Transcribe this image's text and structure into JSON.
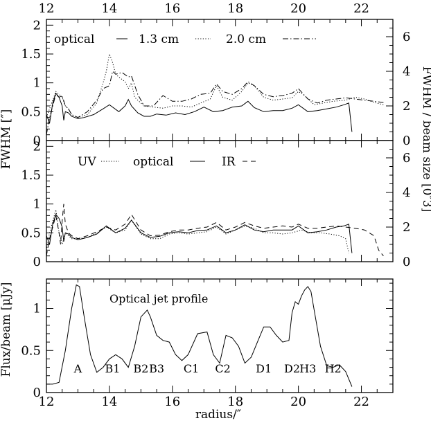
{
  "chart_data": {
    "type": "line",
    "shared_x": {
      "label": "radius/″",
      "range": [
        12,
        23
      ],
      "tick_labels": [
        "12",
        "14",
        "16",
        "18",
        "20",
        "22"
      ]
    },
    "axis_titles": {
      "left_fwhm": "FWHM [″]",
      "right_fwhm": "FWHM / beam size [0″3]",
      "flux": "Flux/beam [μJy]"
    },
    "panels": [
      {
        "id": "top",
        "ylim": [
          0,
          2.1
        ],
        "y_tick_labels": [
          "0",
          "0.5",
          "1",
          "1.5",
          "2"
        ],
        "right_ylim": [
          0,
          7
        ],
        "right_tick_labels": [
          "0",
          "2",
          "4",
          "6"
        ],
        "legend": [
          {
            "label": "optical",
            "style": "solid"
          },
          {
            "label": "1.3 cm",
            "style": "dotted"
          },
          {
            "label": "2.0 cm",
            "style": "dashdot"
          }
        ],
        "series": [
          {
            "name": "optical",
            "style": "solid",
            "x": [
              12.0,
              12.1,
              12.2,
              12.3,
              12.4,
              12.5,
              12.55,
              12.6,
              12.7,
              12.8,
              13.0,
              13.2,
              13.5,
              13.8,
              14.0,
              14.3,
              14.5,
              14.6,
              14.7,
              14.9,
              15.1,
              15.3,
              15.5,
              15.8,
              16.1,
              16.4,
              16.7,
              17.0,
              17.3,
              17.6,
              17.9,
              18.2,
              18.4,
              18.6,
              18.9,
              19.2,
              19.5,
              19.8,
              20.0,
              20.3,
              20.6,
              20.9,
              21.2,
              21.45,
              21.6,
              21.7
            ],
            "y": [
              0.45,
              0.3,
              0.65,
              0.82,
              0.75,
              0.6,
              0.35,
              0.5,
              0.48,
              0.42,
              0.38,
              0.4,
              0.45,
              0.55,
              0.62,
              0.5,
              0.6,
              0.71,
              0.6,
              0.48,
              0.42,
              0.42,
              0.46,
              0.44,
              0.48,
              0.45,
              0.5,
              0.58,
              0.5,
              0.52,
              0.58,
              0.6,
              0.68,
              0.57,
              0.5,
              0.52,
              0.52,
              0.56,
              0.62,
              0.5,
              0.52,
              0.55,
              0.58,
              0.62,
              0.65,
              0.15
            ]
          },
          {
            "name": "1.3 cm",
            "style": "dotted",
            "x": [
              12.0,
              12.1,
              12.2,
              12.3,
              12.4,
              12.5,
              12.6,
              12.7,
              12.8,
              13.0,
              13.3,
              13.6,
              13.8,
              13.9,
              14.0,
              14.1,
              14.2,
              14.3,
              14.5,
              14.6,
              14.7,
              14.8,
              15.1,
              15.4,
              15.7,
              16.0,
              16.3,
              16.6,
              16.9,
              17.2,
              17.4,
              17.6,
              17.9,
              18.2,
              18.4,
              18.6,
              18.9,
              19.2,
              19.5,
              19.8,
              20.0,
              20.2,
              20.5,
              20.8,
              21.1,
              21.5,
              21.8,
              22.1,
              22.4,
              22.7
            ],
            "y": [
              0.4,
              0.55,
              0.7,
              0.85,
              0.8,
              0.75,
              0.6,
              0.55,
              0.45,
              0.4,
              0.45,
              0.65,
              1.0,
              1.2,
              1.5,
              1.35,
              1.15,
              1.1,
              1.02,
              0.9,
              1.0,
              0.75,
              0.6,
              0.58,
              0.56,
              0.6,
              0.6,
              0.58,
              0.65,
              0.72,
              0.95,
              0.75,
              0.7,
              0.85,
              1.0,
              0.95,
              0.75,
              0.7,
              0.72,
              0.74,
              0.85,
              0.78,
              0.62,
              0.65,
              0.68,
              0.7,
              0.75,
              0.72,
              0.66,
              0.62
            ]
          },
          {
            "name": "2.0 cm",
            "style": "dashdot",
            "x": [
              12.0,
              12.1,
              12.2,
              12.3,
              12.4,
              12.5,
              12.6,
              12.7,
              12.8,
              13.0,
              13.3,
              13.6,
              13.8,
              14.0,
              14.1,
              14.2,
              14.4,
              14.6,
              14.7,
              14.9,
              15.1,
              15.4,
              15.7,
              16.0,
              16.3,
              16.6,
              16.9,
              17.2,
              17.4,
              17.6,
              17.9,
              18.2,
              18.4,
              18.6,
              18.9,
              19.2,
              19.5,
              19.8,
              20.0,
              20.3,
              20.6,
              20.9,
              21.2,
              21.5,
              21.8,
              22.1,
              22.4,
              22.7
            ],
            "y": [
              0.1,
              0.4,
              0.6,
              0.8,
              0.75,
              0.78,
              0.6,
              0.55,
              0.45,
              0.4,
              0.5,
              0.7,
              0.9,
              0.95,
              1.2,
              1.15,
              1.18,
              1.1,
              1.12,
              0.8,
              0.6,
              0.6,
              0.78,
              0.68,
              0.68,
              0.72,
              0.8,
              0.82,
              0.98,
              0.85,
              0.8,
              0.9,
              1.02,
              0.95,
              0.8,
              0.76,
              0.78,
              0.82,
              0.9,
              0.72,
              0.65,
              0.7,
              0.72,
              0.74,
              0.72,
              0.7,
              0.68,
              0.66
            ]
          }
        ]
      },
      {
        "id": "middle",
        "ylim": [
          0,
          2.1
        ],
        "y_tick_labels": [
          "0",
          "0.5",
          "1",
          "1.5",
          "2"
        ],
        "right_ylim": [
          0,
          7
        ],
        "right_tick_labels": [
          "0",
          "2",
          "4",
          "6"
        ],
        "legend": [
          {
            "label": "UV",
            "style": "dotted"
          },
          {
            "label": "optical",
            "style": "solid"
          },
          {
            "label": "IR",
            "style": "dashed"
          }
        ],
        "series": [
          {
            "name": "UV",
            "style": "dotted",
            "x": [
              12.0,
              12.1,
              12.2,
              12.3,
              12.4,
              12.5,
              12.6,
              12.7,
              12.8,
              13.0,
              13.3,
              13.6,
              13.9,
              14.2,
              14.5,
              14.7,
              15.0,
              15.3,
              15.6,
              15.9,
              16.2,
              16.5,
              16.8,
              17.1,
              17.4,
              17.7,
              18.0,
              18.3,
              18.6,
              18.9,
              19.2,
              19.5,
              19.8,
              20.1,
              20.4,
              20.7,
              21.0,
              21.3,
              21.5,
              21.6
            ],
            "y": [
              0.2,
              0.5,
              0.7,
              0.9,
              0.5,
              0.3,
              0.5,
              0.45,
              0.4,
              0.4,
              0.42,
              0.5,
              0.6,
              0.5,
              0.55,
              0.72,
              0.48,
              0.4,
              0.4,
              0.48,
              0.5,
              0.48,
              0.5,
              0.52,
              0.6,
              0.48,
              0.55,
              0.62,
              0.58,
              0.5,
              0.5,
              0.48,
              0.5,
              0.55,
              0.5,
              0.5,
              0.48,
              0.45,
              0.4,
              0.15
            ]
          },
          {
            "name": "optical",
            "style": "solid",
            "x": [
              12.0,
              12.1,
              12.2,
              12.3,
              12.4,
              12.5,
              12.55,
              12.6,
              12.7,
              12.8,
              13.0,
              13.3,
              13.6,
              13.9,
              14.2,
              14.5,
              14.7,
              15.0,
              15.3,
              15.6,
              15.9,
              16.2,
              16.5,
              16.8,
              17.1,
              17.4,
              17.7,
              18.0,
              18.3,
              18.6,
              18.9,
              19.2,
              19.5,
              19.8,
              20.0,
              20.3,
              20.6,
              20.9,
              21.2,
              21.45,
              21.6,
              21.7
            ],
            "y": [
              0.45,
              0.3,
              0.65,
              0.82,
              0.75,
              0.6,
              0.35,
              0.5,
              0.48,
              0.42,
              0.38,
              0.42,
              0.48,
              0.62,
              0.5,
              0.58,
              0.72,
              0.5,
              0.42,
              0.44,
              0.5,
              0.52,
              0.5,
              0.54,
              0.55,
              0.62,
              0.5,
              0.55,
              0.64,
              0.55,
              0.52,
              0.55,
              0.55,
              0.55,
              0.62,
              0.5,
              0.52,
              0.55,
              0.6,
              0.62,
              0.65,
              0.15
            ]
          },
          {
            "name": "IR",
            "style": "dashed",
            "x": [
              12.0,
              12.1,
              12.2,
              12.3,
              12.4,
              12.45,
              12.5,
              12.55,
              12.6,
              12.7,
              12.8,
              13.0,
              13.3,
              13.6,
              13.9,
              14.2,
              14.5,
              14.7,
              15.0,
              15.3,
              15.6,
              15.9,
              16.2,
              16.5,
              16.8,
              17.1,
              17.4,
              17.7,
              18.0,
              18.3,
              18.6,
              18.9,
              19.2,
              19.5,
              19.8,
              20.0,
              20.3,
              20.6,
              20.9,
              21.2,
              21.5,
              21.8,
              22.1,
              22.4,
              22.55,
              22.7
            ],
            "y": [
              0.1,
              0.4,
              0.6,
              0.8,
              0.5,
              0.3,
              0.7,
              1.0,
              0.65,
              0.5,
              0.45,
              0.4,
              0.45,
              0.52,
              0.6,
              0.55,
              0.65,
              0.82,
              0.55,
              0.45,
              0.46,
              0.52,
              0.55,
              0.55,
              0.58,
              0.6,
              0.68,
              0.55,
              0.6,
              0.68,
              0.62,
              0.58,
              0.6,
              0.62,
              0.6,
              0.65,
              0.58,
              0.58,
              0.6,
              0.62,
              0.6,
              0.58,
              0.55,
              0.45,
              0.2,
              0.1
            ]
          }
        ]
      },
      {
        "id": "bottom",
        "ylim": [
          0,
          1.35
        ],
        "y_tick_labels": [
          "0",
          "0.5",
          "1"
        ],
        "annotation": "Optical jet profile",
        "knots": [
          {
            "label": "A",
            "x": 13.0
          },
          {
            "label": "B1",
            "x": 14.1
          },
          {
            "label": "B2",
            "x": 15.0
          },
          {
            "label": "B3",
            "x": 15.5
          },
          {
            "label": "C1",
            "x": 16.6
          },
          {
            "label": "C2",
            "x": 17.6
          },
          {
            "label": "D1",
            "x": 18.9
          },
          {
            "label": "D2",
            "x": 19.8
          },
          {
            "label": "H3",
            "x": 20.3
          },
          {
            "label": "H2",
            "x": 21.1
          }
        ],
        "series": [
          {
            "name": "optical",
            "style": "solid",
            "x": [
              12.0,
              12.2,
              12.4,
              12.6,
              12.8,
              12.95,
              13.05,
              13.2,
              13.4,
              13.6,
              13.8,
              14.0,
              14.2,
              14.4,
              14.6,
              14.8,
              15.0,
              15.2,
              15.3,
              15.5,
              15.7,
              15.9,
              16.1,
              16.3,
              16.5,
              16.8,
              17.1,
              17.3,
              17.5,
              17.7,
              17.9,
              18.1,
              18.3,
              18.5,
              18.7,
              18.9,
              19.1,
              19.3,
              19.5,
              19.7,
              19.8,
              19.9,
              20.0,
              20.1,
              20.2,
              20.3,
              20.4,
              20.5,
              20.7,
              20.9,
              21.1,
              21.3,
              21.5,
              21.7
            ],
            "y": [
              0.1,
              0.1,
              0.12,
              0.5,
              1.0,
              1.28,
              1.26,
              0.9,
              0.45,
              0.24,
              0.3,
              0.4,
              0.45,
              0.4,
              0.3,
              0.55,
              0.9,
              0.98,
              0.9,
              0.68,
              0.62,
              0.6,
              0.45,
              0.38,
              0.45,
              0.7,
              0.72,
              0.45,
              0.35,
              0.68,
              0.65,
              0.55,
              0.35,
              0.42,
              0.6,
              0.78,
              0.78,
              0.68,
              0.6,
              0.62,
              0.95,
              1.08,
              1.05,
              1.15,
              1.22,
              1.26,
              1.2,
              0.98,
              0.55,
              0.32,
              0.3,
              0.33,
              0.25,
              0.07
            ]
          }
        ]
      }
    ]
  }
}
